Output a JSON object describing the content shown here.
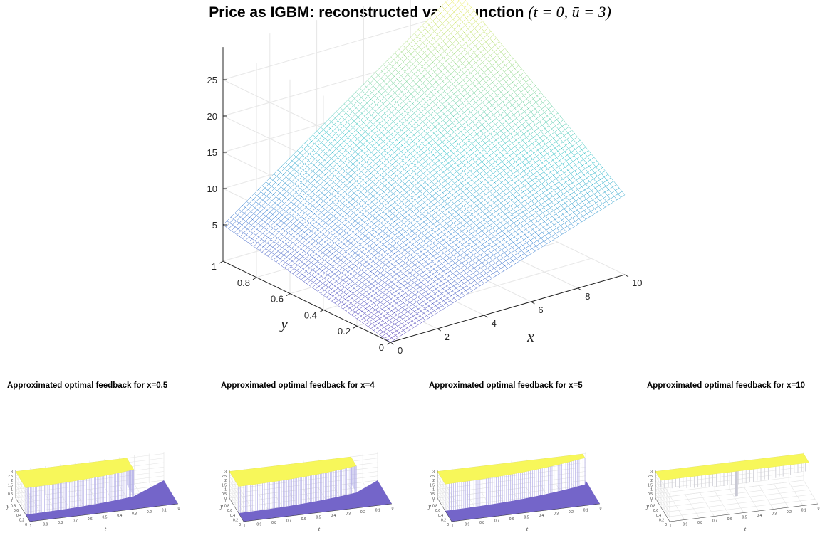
{
  "main_chart": {
    "title_text": "Price as IGBM: reconstructed value function",
    "title_math": "(t = 0, ū = 3)",
    "chart_data": {
      "type": "surface",
      "xlabel": "x",
      "ylabel": "y",
      "x_range": [
        0,
        10
      ],
      "y_range": [
        0,
        1
      ],
      "z_range": [
        0,
        25
      ],
      "x_ticks": [
        "0",
        "2",
        "4",
        "6",
        "8",
        "10"
      ],
      "y_ticks": [
        "0",
        "0.2",
        "0.4",
        "0.6",
        "0.8",
        "1"
      ],
      "z_ticks": [
        "5",
        "10",
        "15",
        "20",
        "25"
      ],
      "corner_values": {
        "x0_y0": 0,
        "x0_y1": 5,
        "x10_y0": 11,
        "x10_y1": 28
      },
      "colormap": [
        "#5a3fb8",
        "#3f86d6",
        "#2ec2c9",
        "#8fd98a",
        "#fcee4a"
      ],
      "grid": true
    }
  },
  "subplots": [
    {
      "title": "Approximated optimal feedback for x=0.5",
      "x_value": 0.5,
      "kind": "switch"
    },
    {
      "title": "Approximated optimal feedback for x=4",
      "x_value": 4,
      "kind": "switch"
    },
    {
      "title": "Approximated optimal feedback for x=5",
      "x_value": 5,
      "kind": "switch"
    },
    {
      "title": "Approximated optimal feedback for x=10",
      "x_value": 10,
      "kind": "flat"
    }
  ],
  "subplot_axes": {
    "xlabel": "t",
    "ylabel": "y",
    "t_ticks": [
      "1",
      "0.9",
      "0.8",
      "0.7",
      "0.6",
      "0.5",
      "0.4",
      "0.3",
      "0.2",
      "0.1",
      "0"
    ],
    "y_ticks": [
      "0",
      "0.2",
      "0.4",
      "0.6",
      "0.8",
      "1"
    ],
    "z_ticks": [
      "0",
      "0.5",
      "1",
      "1.5",
      "2",
      "2.5",
      "3"
    ],
    "z_range": [
      0,
      3
    ],
    "upper_color": "#f7f75a",
    "lower_color": "#7465c9",
    "line_color": "#b3aee6"
  }
}
